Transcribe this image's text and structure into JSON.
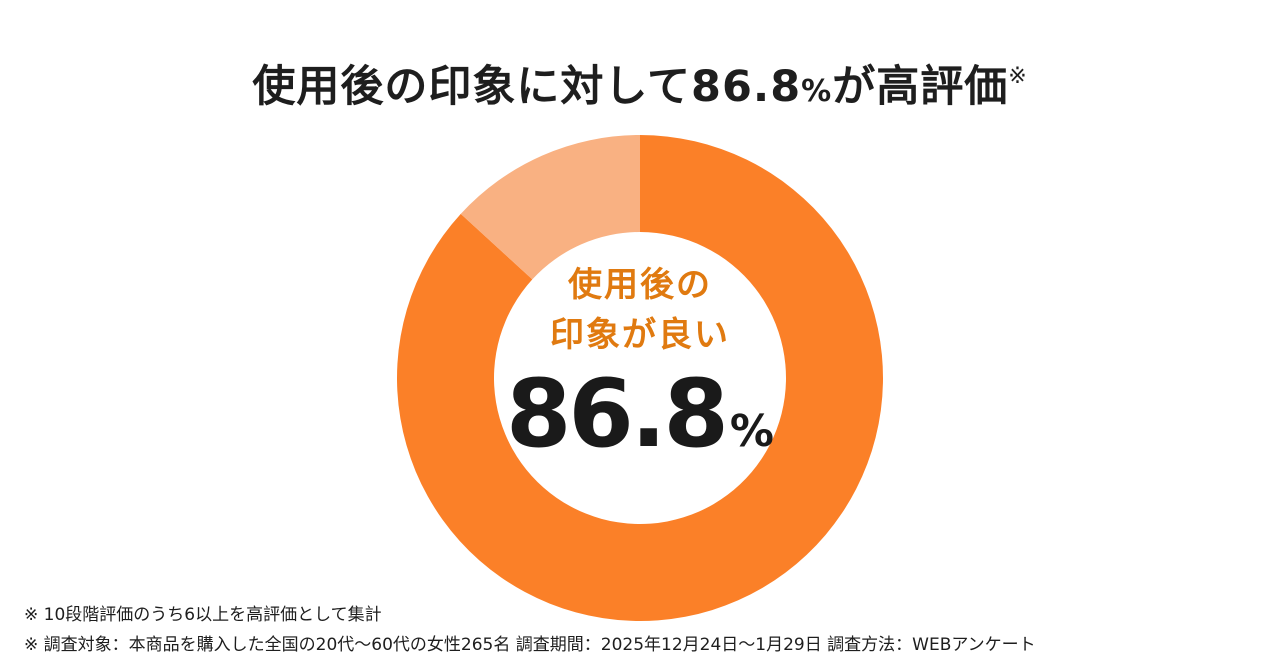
{
  "header": {
    "title_main": "使用後の印象に対して86.8",
    "title_pct": "%",
    "title_tail": "が高評価",
    "title_note": "※"
  },
  "center": {
    "label_line1": "使用後の",
    "label_line2": "印象が良い",
    "value": "86.8",
    "unit": "%"
  },
  "footnotes": {
    "note1": "※ 10段階評価のうち6以上を高評価として集計",
    "note2": "※ 調査対象：本商品を購入した全国の20代〜60代の女性265名 調査期間：2025年12月24日〜1月29日 調査方法：WEBアンケート"
  },
  "chart_data": {
    "type": "pie",
    "donut": true,
    "categories": [
      "使用後の印象が良い",
      ""
    ],
    "values": [
      86.8,
      13.2
    ],
    "colors": [
      "#fb8028",
      "#f9b182"
    ],
    "start": "12 o'clock",
    "direction": "clockwise",
    "title": "使用後の印象に対して86.8%が高評価※"
  }
}
